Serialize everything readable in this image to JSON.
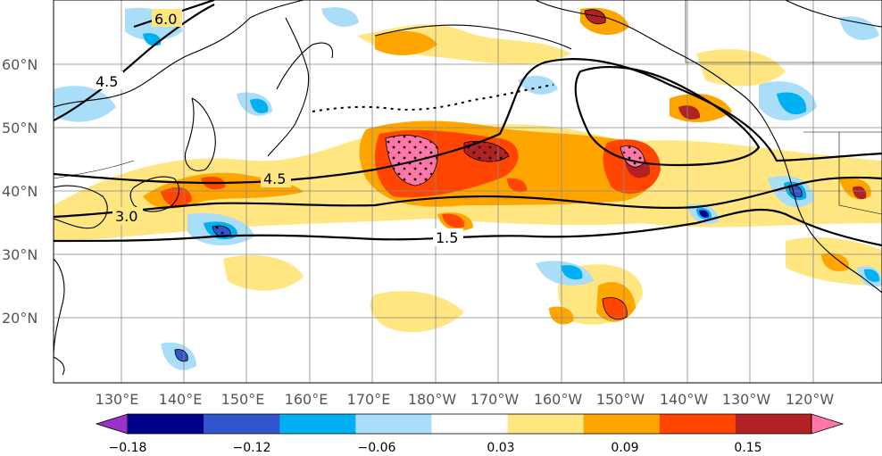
{
  "map": {
    "lat_labels": [
      "60°N",
      "50°N",
      "40°N",
      "30°N",
      "20°N"
    ],
    "lon_labels": [
      "130°E",
      "140°E",
      "150°E",
      "160°E",
      "170°E",
      "180°W",
      "170°W",
      "160°W",
      "150°W",
      "140°W",
      "130°W",
      "120°W"
    ],
    "contour_labels": [
      "6.0",
      "4.5",
      "4.5",
      "3.0",
      "1.5"
    ]
  },
  "colorbar": {
    "tick_labels": [
      "−0.18",
      "−0.12",
      "−0.06",
      "0.03",
      "0.09",
      "0.15"
    ],
    "colors": [
      "#9933cc",
      "#000088",
      "#3355cc",
      "#00b0f0",
      "#aaddf7",
      "#ffffff",
      "#ffe680",
      "#ffa500",
      "#ff4500",
      "#b22222",
      "#ff77aa"
    ]
  }
}
